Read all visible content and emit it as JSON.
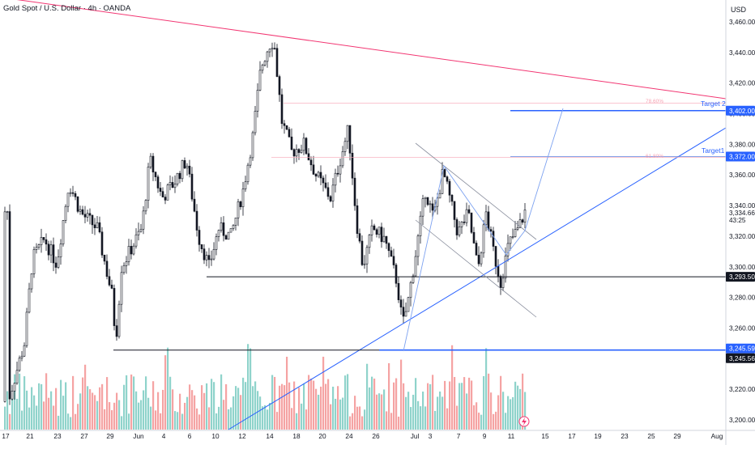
{
  "title": "Gold Spot / U.S. Dollar · 4h · OANDA",
  "currency": "USD",
  "colors": {
    "up": "#26a69a",
    "down": "#ef5350",
    "candle": "#131722",
    "trend_blue": "#2962ff",
    "resistance_pink": "#f23672",
    "fib": "#f7a4b4",
    "grid": "#f0f3fa"
  },
  "chart_data": {
    "type": "candlestick",
    "y_axis": {
      "min": 3200,
      "max": 3460,
      "ticks": [
        "3,460.000",
        "3,440.000",
        "3,420.000",
        "3,400.000",
        "3,380.000",
        "3,360.000",
        "3,340.000",
        "3,320.000",
        "3,300.000",
        "3,280.000",
        "3,260.000",
        "3,240.000",
        "3,220.000",
        "3,200.000"
      ]
    },
    "x_axis": {
      "ticks": [
        "17",
        "21",
        "23",
        "27",
        "29",
        "Jun",
        "4",
        "6",
        "10",
        "12",
        "14",
        "18",
        "20",
        "24",
        "26",
        "Jul",
        "3",
        "7",
        "9",
        "11",
        "15",
        "17",
        "19",
        "23",
        "25",
        "29",
        "Aug"
      ]
    },
    "current_price": "3,334.660",
    "countdown": "43:25",
    "levels": [
      {
        "label": "3,402.000",
        "price": 3402.0,
        "annotation": "Target 2",
        "fib": "78.60%"
      },
      {
        "label": "3,372.000",
        "price": 3372.0,
        "annotation": "Target1",
        "fib": "61.80%"
      },
      {
        "label": "3,293.500",
        "price": 3293.5
      },
      {
        "label": "3,245.596",
        "price": 3245.596
      },
      {
        "label": "3,245.560",
        "price": 3245.56
      }
    ]
  }
}
